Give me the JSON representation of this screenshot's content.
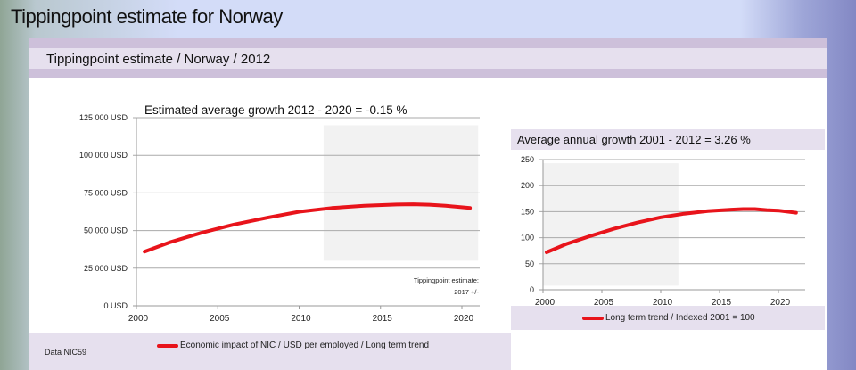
{
  "slide": {
    "title": "Tippingpoint estimate for Norway",
    "subtitle": "Tippingpoint estimate / Norway / 2012",
    "source": "Data NIC59"
  },
  "colors": {
    "series": "#e8141b",
    "shade": "#f2f2f2",
    "band": "#e6e0ee",
    "band_dark": "#cdc0da"
  },
  "chart_data": [
    {
      "type": "line",
      "title": "Estimated average growth 2012 - 2020 = -0.15 %",
      "xlim": [
        2000,
        2021
      ],
      "ylim": [
        0,
        125000
      ],
      "x_ticks": [
        "2000",
        "2005",
        "2010",
        "2015",
        "2020"
      ],
      "y_ticks": [
        "0 USD",
        "25 000 USD",
        "50 000 USD",
        "75 000 USD",
        "100 000 USD",
        "125 000 USD"
      ],
      "grid": true,
      "shaded_region": {
        "x": [
          2011.5,
          2021
        ],
        "y": [
          30000,
          120000
        ]
      },
      "annotation": [
        "Tippingpoint estimate:",
        "2017 +/-"
      ],
      "legend": "bottom",
      "series": [
        {
          "name": "Economic impact of NIC / USD per employed / Long term trend",
          "x": [
            2000.5,
            2002,
            2004,
            2006,
            2008,
            2010,
            2012,
            2014,
            2016,
            2017,
            2018,
            2019,
            2020.5
          ],
          "y": [
            36000,
            42000,
            48500,
            54000,
            58500,
            62500,
            65000,
            66500,
            67300,
            67500,
            67200,
            66500,
            65000
          ]
        }
      ]
    },
    {
      "type": "line",
      "title": "Average annual growth 2001 - 2012 = 3.26 %",
      "xlim": [
        2000,
        2023
      ],
      "ylim": [
        0,
        250
      ],
      "x_ticks": [
        "2000",
        "2005",
        "2010",
        "2015",
        "2020"
      ],
      "y_ticks": [
        "0",
        "50",
        "100",
        "150",
        "200",
        "250"
      ],
      "grid": true,
      "shaded_region": {
        "x": [
          2000,
          2011.5
        ],
        "y": [
          8,
          243
        ]
      },
      "legend": "bottom",
      "series": [
        {
          "name": "Long term trend / Indexed 2001 = 100",
          "x": [
            2000.3,
            2002,
            2004,
            2006,
            2008,
            2010,
            2012,
            2014,
            2016,
            2017,
            2018,
            2019,
            2020,
            2021.5
          ],
          "y": [
            72,
            88,
            103,
            117,
            129,
            139,
            146,
            151,
            154,
            155,
            155,
            153,
            152,
            148
          ]
        }
      ]
    }
  ]
}
